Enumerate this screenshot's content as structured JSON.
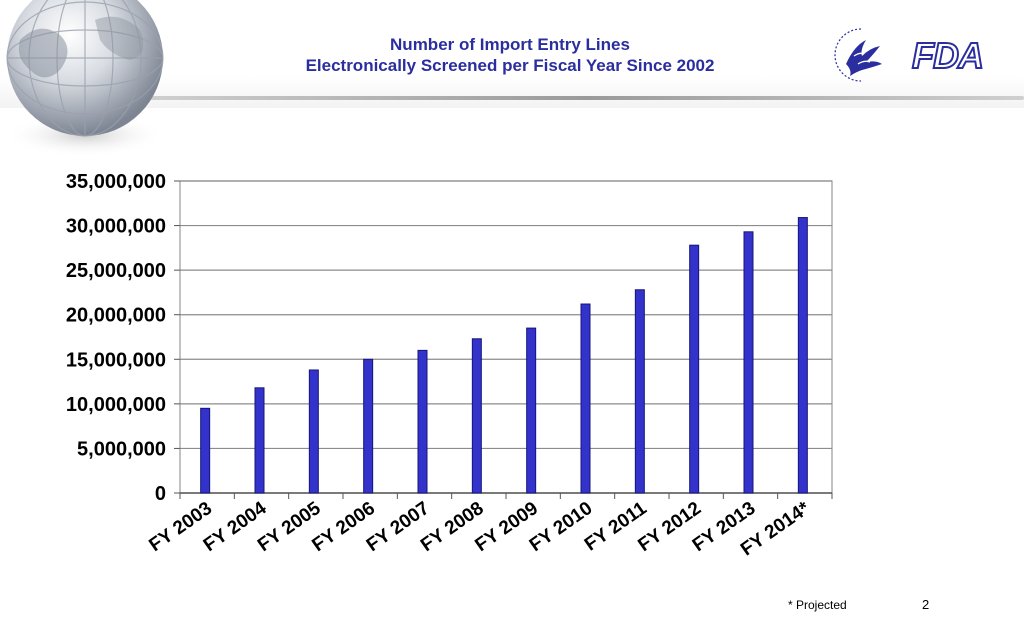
{
  "slide": {
    "title_line1": "Number of Import Entry Lines",
    "title_line2": "Electronically Screened per Fiscal Year Since 2002",
    "logo_text": "FDA",
    "footnote": "* Projected",
    "page_number": "2",
    "colors": {
      "title": "#2b2e9e",
      "bar": "#3333cc",
      "bar_edge": "#15157a"
    },
    "icons": [
      "globe-icon",
      "hhs-eagle-icon",
      "fda-logo-icon"
    ]
  },
  "chart_data": {
    "type": "bar",
    "title": "Number of Import Entry Lines Electronically Screened per Fiscal Year Since 2002",
    "categories": [
      "FY 2003",
      "FY 2004",
      "FY 2005",
      "FY 2006",
      "FY 2007",
      "FY 2008",
      "FY 2009",
      "FY 2010",
      "FY 2011",
      "FY 2012",
      "FY 2013",
      "FY 2014*"
    ],
    "values": [
      9500000,
      11800000,
      13800000,
      15000000,
      16000000,
      17300000,
      18500000,
      21200000,
      22800000,
      27800000,
      29300000,
      30900000
    ],
    "ylim": [
      0,
      35000000
    ],
    "yticks": [
      0,
      5000000,
      10000000,
      15000000,
      20000000,
      25000000,
      30000000,
      35000000
    ],
    "ytick_labels": [
      "0",
      "5,000,000",
      "10,000,000",
      "15,000,000",
      "20,000,000",
      "25,000,000",
      "30,000,000",
      "35,000,000"
    ],
    "xlabel": "",
    "ylabel": "",
    "grid": true,
    "legend": "none"
  }
}
